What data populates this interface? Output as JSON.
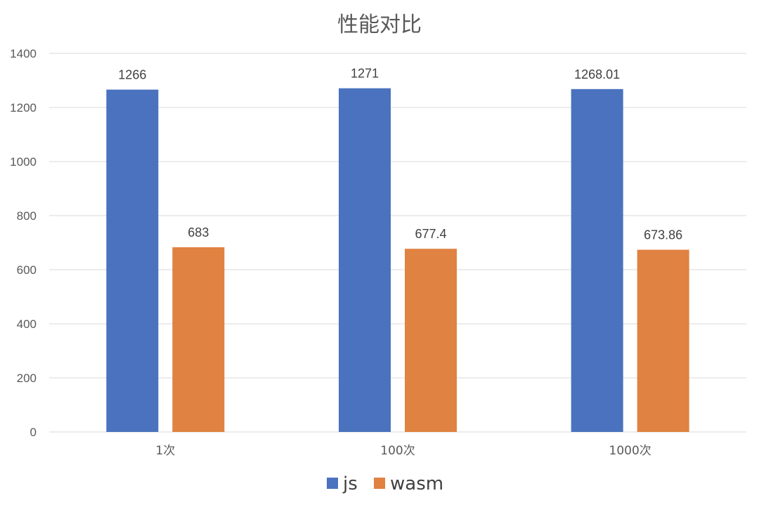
{
  "chart_data": {
    "type": "bar",
    "title": "性能对比",
    "xlabel": "",
    "ylabel": "",
    "categories": [
      "1次",
      "100次",
      "1000次"
    ],
    "series": [
      {
        "name": "js",
        "color": "#4a72be",
        "values": [
          1266,
          1271,
          1268.01
        ],
        "labels": [
          "1266",
          "1271",
          "1268.01"
        ]
      },
      {
        "name": "wasm",
        "color": "#e08241",
        "values": [
          683,
          677.4,
          673.86
        ],
        "labels": [
          "683",
          "677.4",
          "673.86"
        ]
      }
    ],
    "ylim": [
      0,
      1400
    ],
    "yticks": [
      0,
      200,
      400,
      600,
      800,
      1000,
      1200,
      1400
    ],
    "grid": true,
    "legend": "bottom"
  }
}
